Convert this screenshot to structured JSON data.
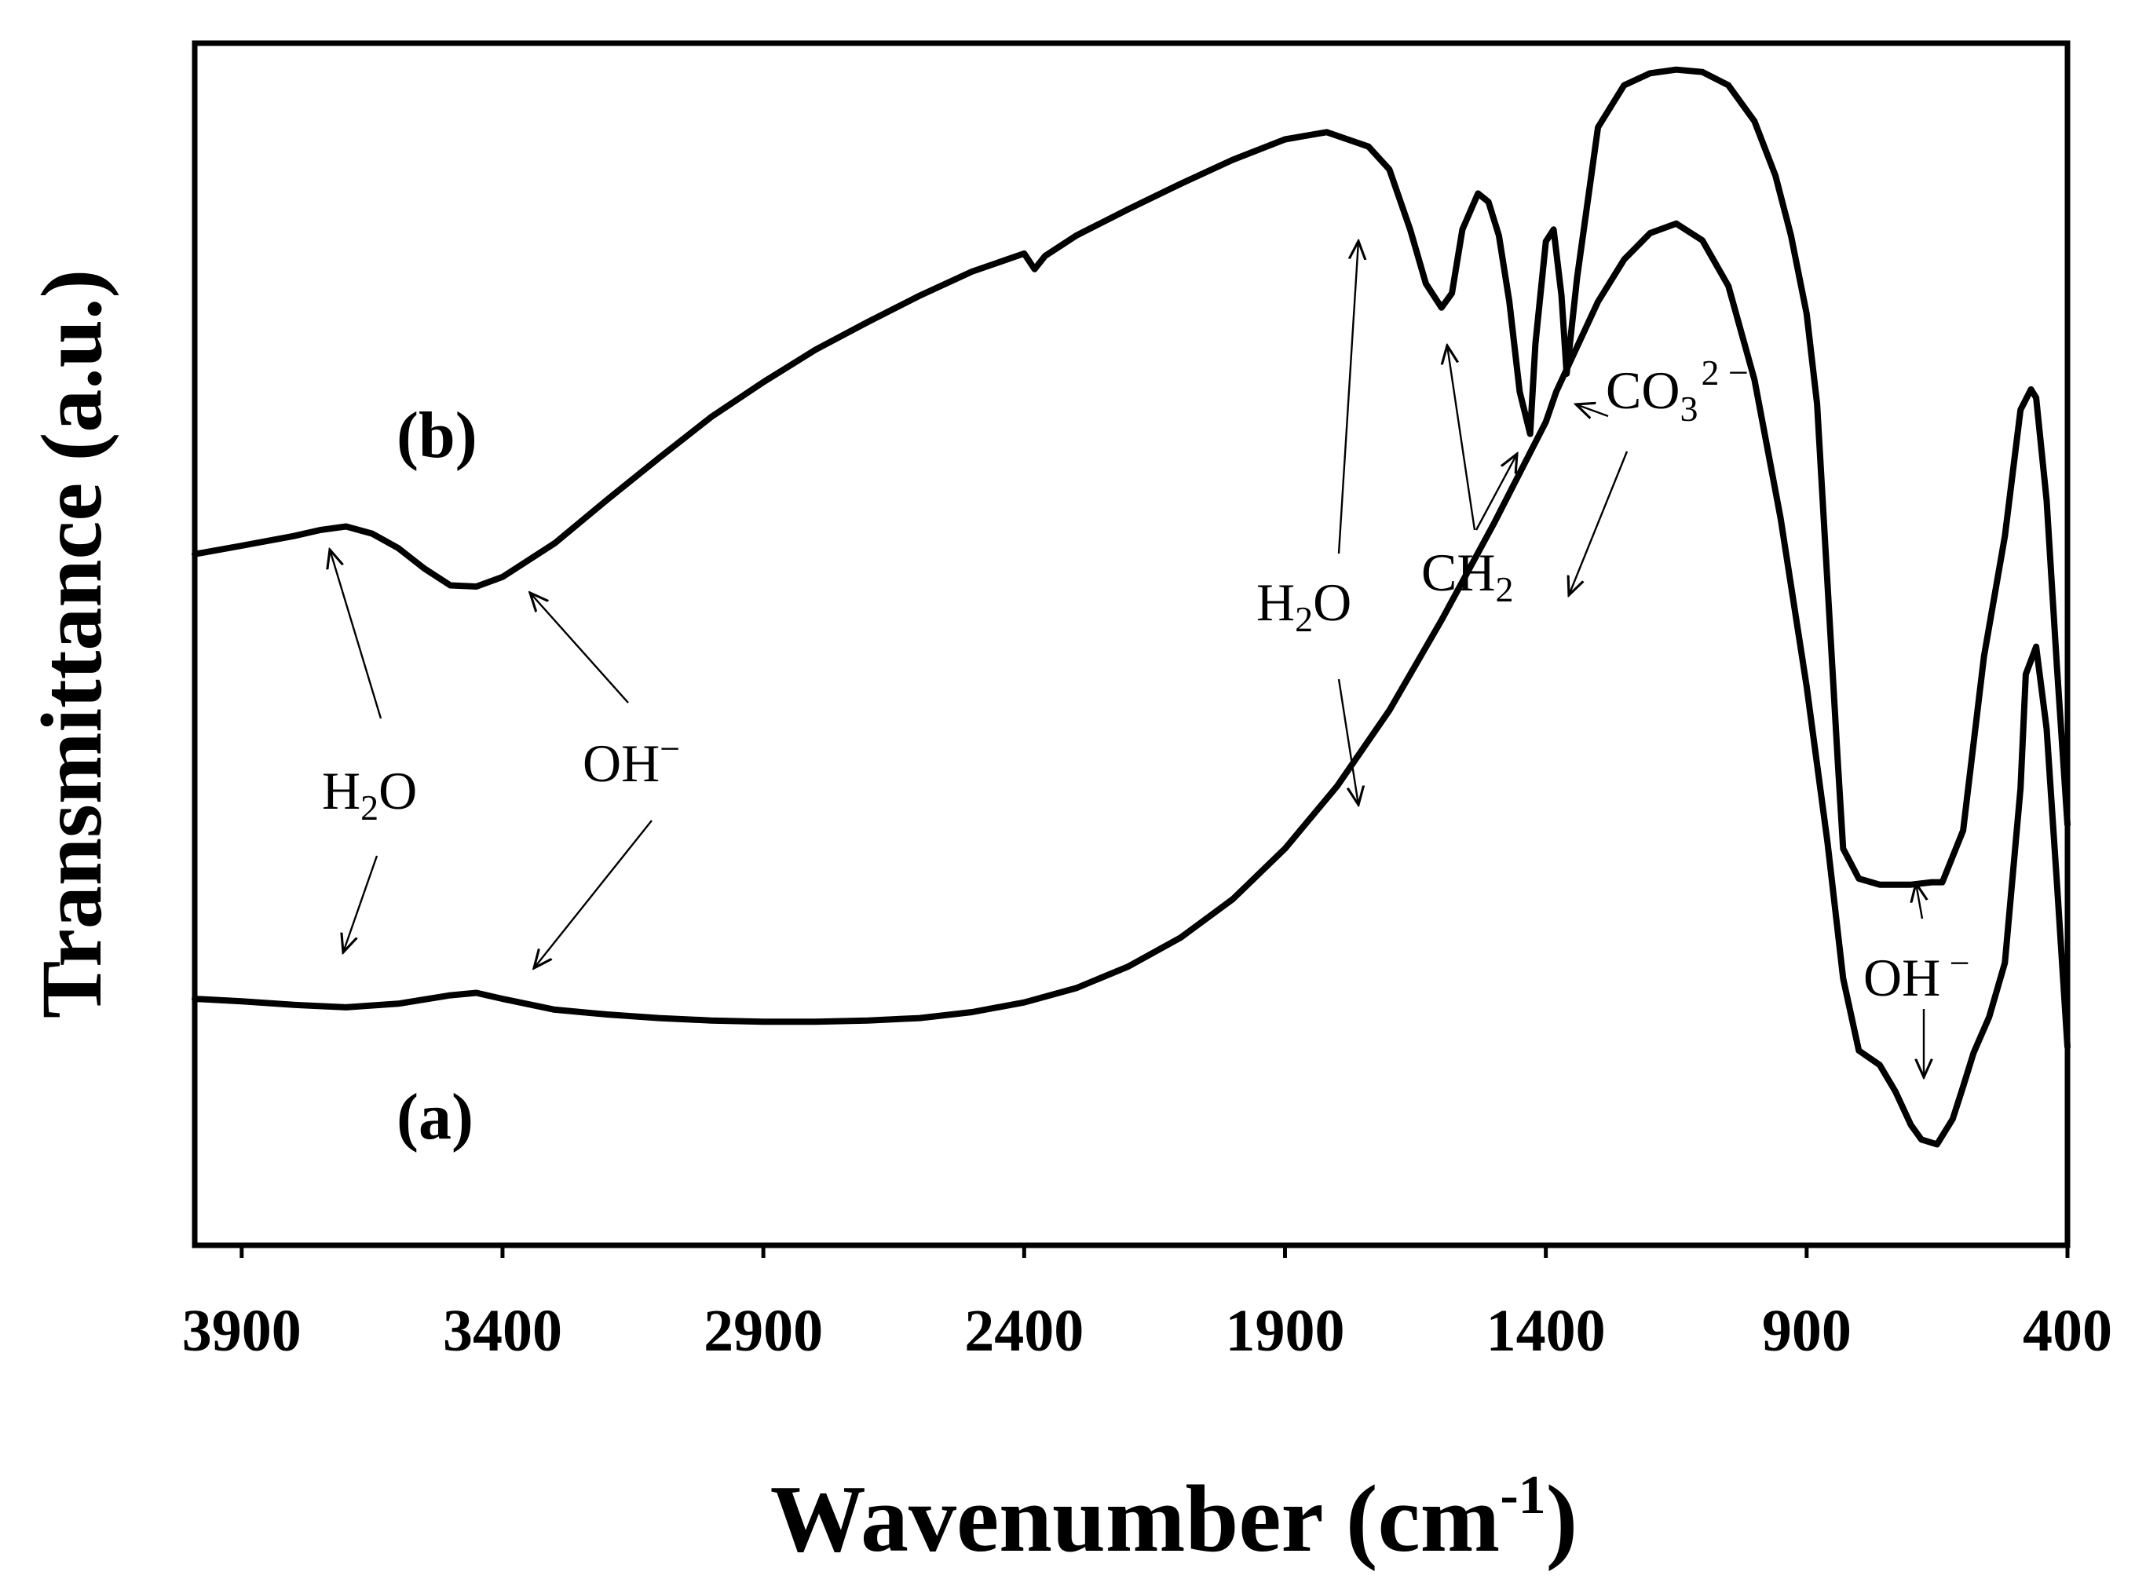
{
  "chart_data": {
    "type": "line",
    "title": "",
    "xlabel": "Wavenumber (cm",
    "xlabel_sup": "-1",
    "xlabel_close": ")",
    "ylabel": "Transmittance (a.u.)",
    "xlim": [
      3990,
      400
    ],
    "ylim": [
      0,
      100
    ],
    "xticks": [
      3900,
      3400,
      2900,
      2400,
      1900,
      1400,
      900,
      400
    ],
    "xtick_labels": [
      "3900",
      "3400",
      "2900",
      "2400",
      "1900",
      "1400",
      "900",
      "400"
    ],
    "yticks_shown": false,
    "series": [
      {
        "name": "(a)",
        "label": "(a)",
        "x": [
          3990,
          3900,
          3800,
          3700,
          3600,
          3500,
          3450,
          3400,
          3300,
          3200,
          3100,
          3000,
          2900,
          2800,
          2700,
          2600,
          2500,
          2400,
          2300,
          2200,
          2100,
          2000,
          1900,
          1800,
          1700,
          1600,
          1500,
          1400,
          1380,
          1300,
          1250,
          1200,
          1150,
          1100,
          1050,
          1000,
          950,
          900,
          860,
          830,
          800,
          760,
          730,
          700,
          680,
          650,
          620,
          600,
          580,
          550,
          520,
          490,
          480,
          460,
          440,
          420,
          400
        ],
        "y": [
          20.5,
          20.3,
          20.0,
          19.8,
          20.1,
          20.8,
          21.0,
          20.5,
          19.6,
          19.2,
          18.9,
          18.7,
          18.6,
          18.6,
          18.7,
          18.9,
          19.4,
          20.2,
          21.4,
          23.2,
          25.6,
          28.8,
          33.0,
          38.2,
          44.5,
          52.0,
          60.0,
          68.5,
          71.0,
          78.5,
          82.0,
          84.2,
          85.0,
          83.6,
          79.8,
          72.0,
          60.5,
          46.5,
          33.5,
          22.2,
          16.2,
          15.0,
          12.8,
          10.0,
          8.8,
          8.4,
          10.5,
          13.2,
          16.0,
          19.0,
          23.5,
          38.0,
          47.5,
          49.8,
          43.0,
          30.0,
          16.5
        ]
      },
      {
        "name": "(b)",
        "label": "(b)",
        "x": [
          3990,
          3900,
          3800,
          3750,
          3700,
          3650,
          3600,
          3550,
          3500,
          3450,
          3400,
          3300,
          3200,
          3100,
          3000,
          2900,
          2800,
          2700,
          2600,
          2500,
          2400,
          2380,
          2360,
          2300,
          2200,
          2100,
          2000,
          1900,
          1820,
          1780,
          1740,
          1700,
          1660,
          1630,
          1600,
          1580,
          1560,
          1530,
          1510,
          1490,
          1470,
          1450,
          1430,
          1420,
          1400,
          1385,
          1370,
          1360,
          1340,
          1300,
          1250,
          1200,
          1150,
          1100,
          1050,
          1000,
          960,
          930,
          900,
          880,
          860,
          840,
          830,
          800,
          760,
          720,
          700,
          660,
          640,
          600,
          560,
          520,
          490,
          470,
          460,
          440,
          420,
          400
        ],
        "y": [
          57.5,
          58.2,
          59.0,
          59.5,
          59.8,
          59.2,
          58.0,
          56.3,
          54.9,
          54.8,
          55.6,
          58.4,
          62.0,
          65.5,
          68.9,
          71.8,
          74.5,
          76.8,
          79.0,
          81.0,
          82.5,
          81.2,
          82.3,
          84.0,
          86.2,
          88.3,
          90.3,
          92.0,
          92.6,
          92.0,
          91.4,
          89.5,
          84.5,
          80.0,
          78.0,
          79.2,
          84.5,
          87.5,
          86.8,
          84.0,
          78.5,
          71.0,
          67.5,
          75.0,
          83.5,
          84.5,
          79.0,
          72.5,
          80.5,
          93.0,
          96.5,
          97.5,
          97.8,
          97.6,
          96.5,
          93.5,
          89.0,
          84.0,
          77.5,
          70.0,
          55.0,
          40.0,
          33.0,
          30.5,
          30.0,
          30.0,
          30.0,
          30.2,
          30.2,
          34.5,
          49.0,
          59.0,
          69.5,
          71.2,
          70.5,
          62.0,
          48.0,
          35.0
        ]
      }
    ],
    "annotations": {
      "b_h2o_high": {
        "main": "H",
        "sub": "2",
        "rest": "O"
      },
      "b_oh_high": {
        "main": "OH",
        "sup": "−"
      },
      "h2o_mid": {
        "main": "H",
        "sub": "2",
        "rest": "O"
      },
      "ch2": {
        "main": "CH",
        "sub": "2"
      },
      "co3": {
        "main": "CO",
        "sub": "3",
        "sup": "2 −"
      },
      "oh_low": {
        "main": "OH",
        "sup": " −"
      }
    }
  }
}
